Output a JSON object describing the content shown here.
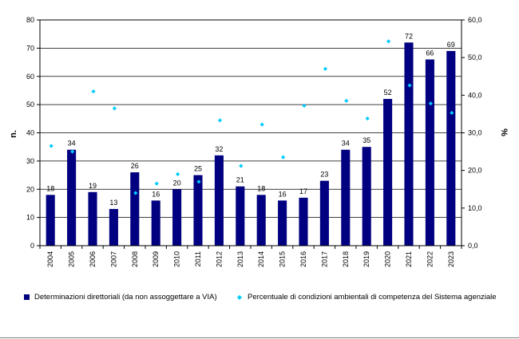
{
  "chart_data": {
    "type": "bar",
    "categories": [
      "2004",
      "2005",
      "2006",
      "2007",
      "2008",
      "2009",
      "2010",
      "2011",
      "2012",
      "2013",
      "2014",
      "2015",
      "2016",
      "2017",
      "2018",
      "2019",
      "2020",
      "2021",
      "2022",
      "2023"
    ],
    "series": [
      {
        "name": "Determinazioni direttoriali (da non assoggettare a VIA)",
        "type": "bar",
        "axis": "left",
        "color": "#000080",
        "values": [
          18,
          34,
          19,
          13,
          26,
          16,
          20,
          25,
          32,
          21,
          18,
          16,
          17,
          23,
          34,
          35,
          52,
          72,
          66,
          69
        ],
        "data_labels": [
          "18",
          "34",
          "19",
          "13",
          "26",
          "16",
          "20",
          "25",
          "32",
          "21",
          "18",
          "16",
          "17",
          "23",
          "34",
          "35",
          "52",
          "72",
          "66",
          "69"
        ]
      },
      {
        "name": "Percentuale di condizioni ambientali  di competenza del Sistema agenziale",
        "type": "scatter",
        "axis": "right",
        "color": "#00ccff",
        "marker": "diamond",
        "values": [
          26.5,
          25.0,
          41.0,
          36.5,
          14.0,
          16.5,
          19.0,
          17.0,
          33.3,
          21.2,
          32.2,
          23.5,
          37.2,
          47.0,
          38.5,
          33.8,
          54.3,
          42.6,
          37.8,
          35.3
        ]
      }
    ],
    "ylabel": "n.",
    "y2label": "%",
    "ylim": [
      0,
      80
    ],
    "y2lim": [
      0,
      60
    ],
    "yticks": [
      "0",
      "10",
      "20",
      "30",
      "40",
      "50",
      "60",
      "70",
      "80"
    ],
    "y2ticks": [
      "0,0",
      "10,0",
      "20,0",
      "30,0",
      "40,0",
      "50,0",
      "60,0"
    ],
    "grid": true,
    "legend_position": "bottom"
  }
}
